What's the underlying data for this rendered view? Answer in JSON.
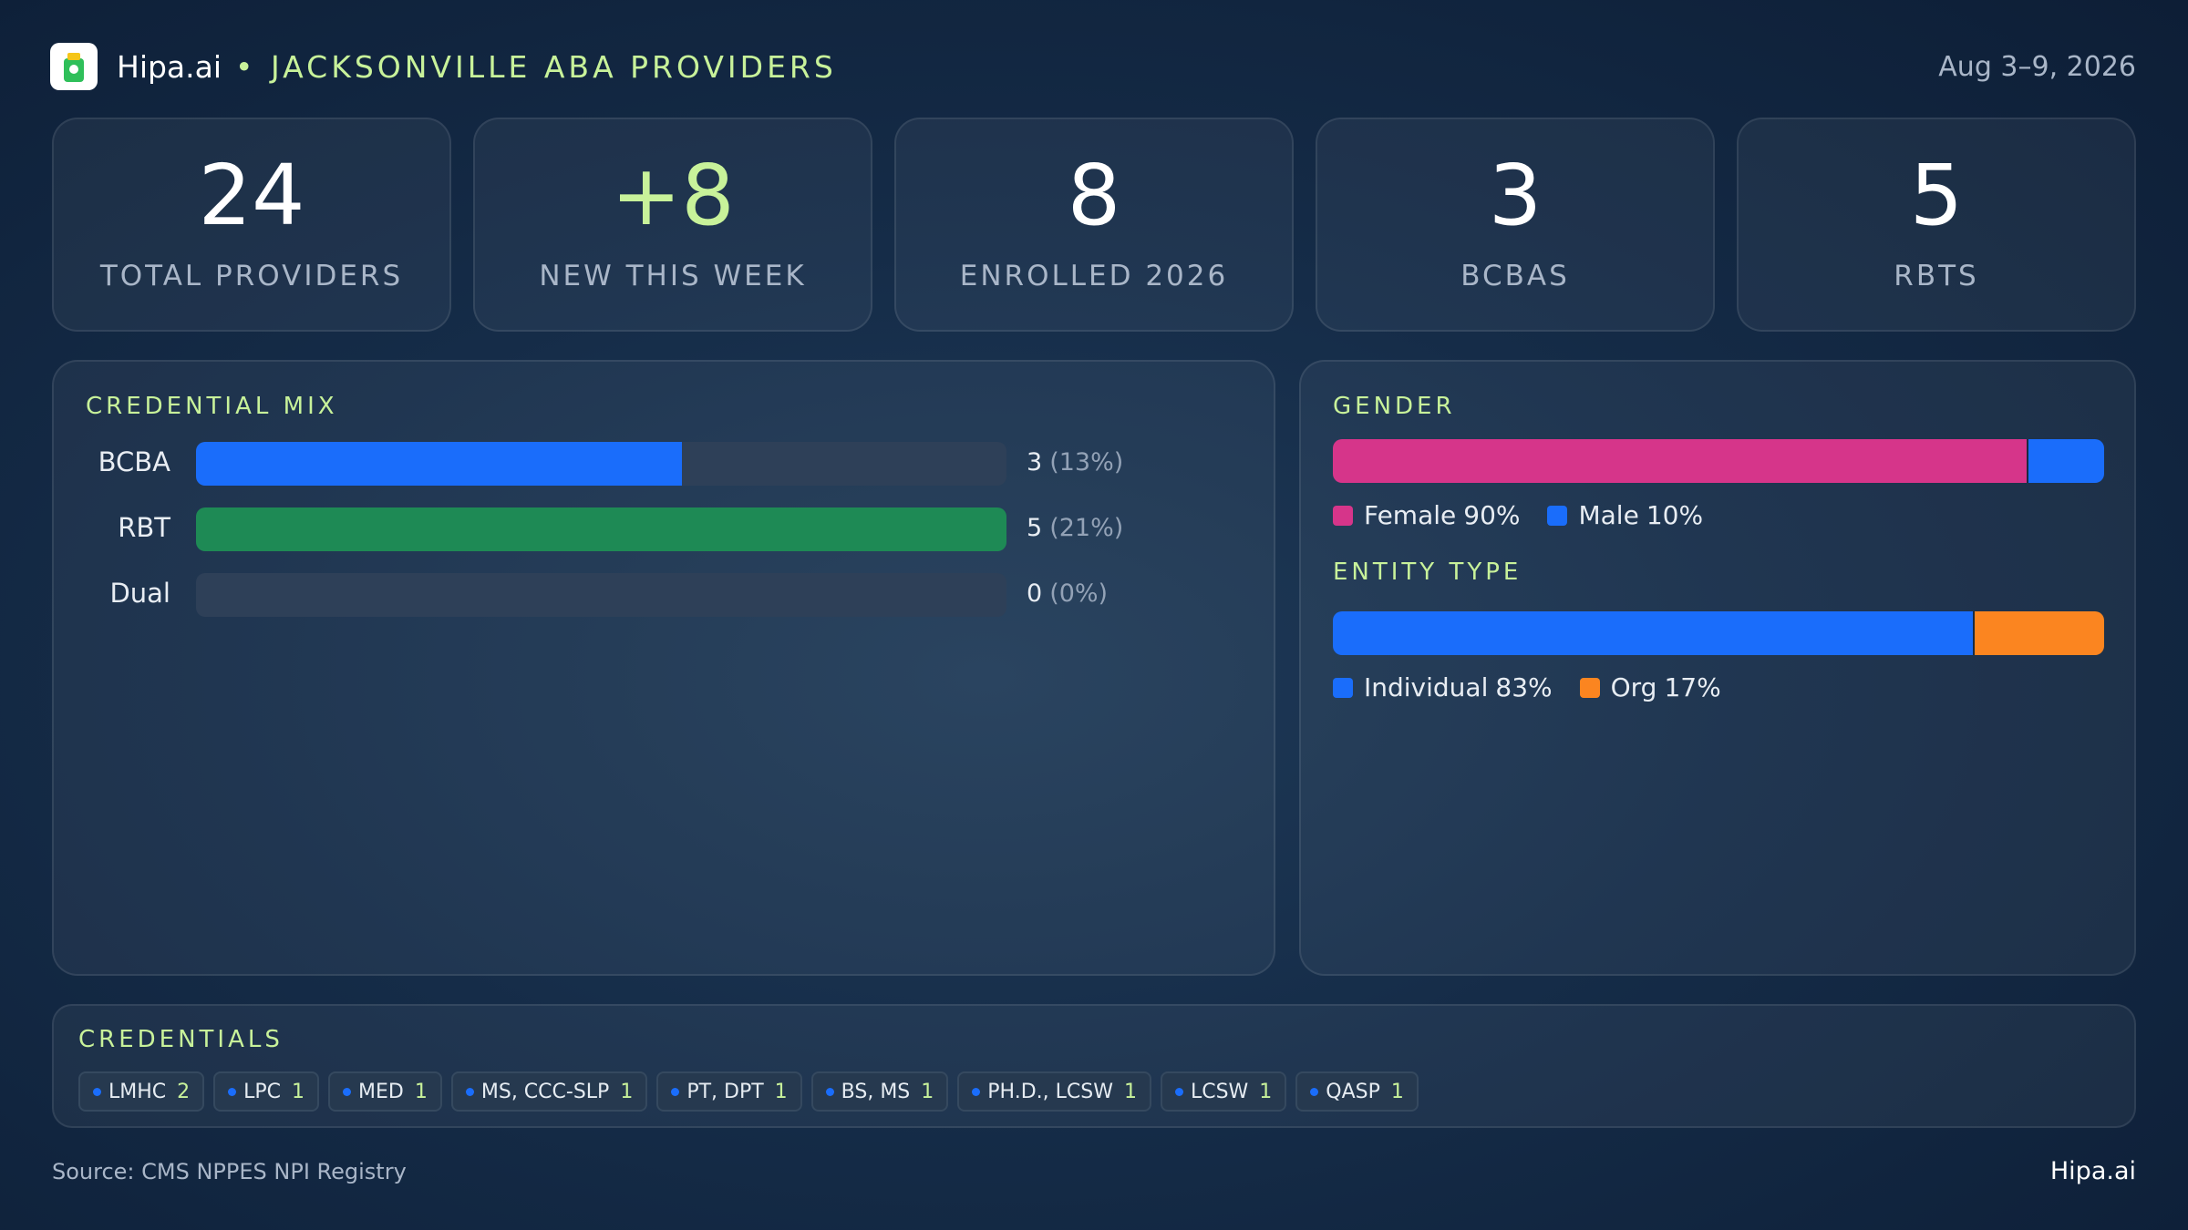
{
  "header": {
    "brand": "Hipa.ai",
    "title": "JACKSONVILLE ABA PROVIDERS",
    "date": "Aug 3–9, 2026"
  },
  "stats": [
    {
      "value": "24",
      "label": "TOTAL PROVIDERS"
    },
    {
      "value": "+8",
      "label": "NEW THIS WEEK",
      "accent": true
    },
    {
      "value": "8",
      "label": "ENROLLED 2026"
    },
    {
      "value": "3",
      "label": "BCBAS"
    },
    {
      "value": "5",
      "label": "RBTS"
    }
  ],
  "credential_mix": {
    "title": "CREDENTIAL MIX",
    "categories": [
      "BCBA",
      "RBT",
      "Dual"
    ],
    "values": [
      3,
      5,
      0
    ],
    "shares": [
      "(13%)",
      "(21%)",
      "(0%)"
    ],
    "colors": [
      "#1a6dfb",
      "#1e8a55",
      "#1a6dfb"
    ]
  },
  "gender": {
    "title": "GENDER",
    "series": [
      {
        "name": "Female",
        "value": 90,
        "value_label": "90%",
        "color": "#d6358a"
      },
      {
        "name": "Male",
        "value": 10,
        "value_label": "10%",
        "color": "#1a6dfb"
      }
    ]
  },
  "entity_type": {
    "title": "ENTITY TYPE",
    "series": [
      {
        "name": "Individual",
        "value": 83,
        "value_label": "83%",
        "color": "#1a6dfb"
      },
      {
        "name": "Org",
        "value": 17,
        "value_label": "17%",
        "color": "#fb8520"
      }
    ]
  },
  "credentials": {
    "title": "CREDENTIALS",
    "items": [
      {
        "name": "LMHC",
        "count": 2
      },
      {
        "name": "LPC",
        "count": 1
      },
      {
        "name": "MED",
        "count": 1
      },
      {
        "name": "MS, CCC-SLP",
        "count": 1
      },
      {
        "name": "PT, DPT",
        "count": 1
      },
      {
        "name": "BS, MS",
        "count": 1
      },
      {
        "name": "PH.D., LCSW",
        "count": 1
      },
      {
        "name": "LCSW",
        "count": 1
      },
      {
        "name": "QASP",
        "count": 1
      }
    ]
  },
  "footer": {
    "source": "Source: CMS NPPES NPI Registry",
    "brand": "Hipa.ai"
  }
}
